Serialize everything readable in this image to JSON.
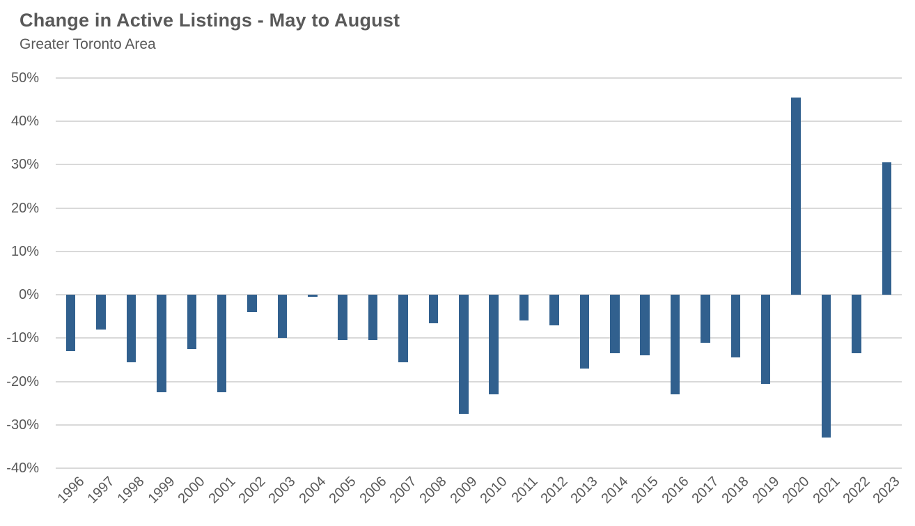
{
  "header": {
    "title": "Change in Active Listings - May to August",
    "subtitle": "Greater Toronto Area"
  },
  "colors": {
    "bar": "#31608E",
    "gridline": "#D9D9D9",
    "title_text": "#595959",
    "axis_text": "#595959",
    "background": "#FFFFFF"
  },
  "chart_data": {
    "type": "bar",
    "title": "Change in Active Listings - May to August",
    "subtitle": "Greater Toronto Area",
    "categories": [
      "1996",
      "1997",
      "1998",
      "1999",
      "2000",
      "2001",
      "2002",
      "2003",
      "2004",
      "2005",
      "2006",
      "2007",
      "2008",
      "2009",
      "2010",
      "2011",
      "2012",
      "2013",
      "2014",
      "2015",
      "2016",
      "2017",
      "2018",
      "2019",
      "2020",
      "2021",
      "2022",
      "2023"
    ],
    "values": [
      -13,
      -8,
      -15.5,
      -22.5,
      -12.5,
      -22.5,
      -4,
      -10,
      -0.5,
      -10.5,
      -10.5,
      -15.5,
      -6.5,
      -27.5,
      -23,
      -6,
      -7,
      -17,
      -13.5,
      -14,
      -23,
      -11,
      -14.5,
      -20.5,
      45.5,
      -33,
      -13.5,
      30.5
    ],
    "units": "%",
    "xlabel": "",
    "ylabel": "",
    "ylim": [
      -40,
      50
    ],
    "ytick_step": 10,
    "ytick_labels": [
      "50%",
      "40%",
      "30%",
      "20%",
      "10%",
      "0%",
      "-10%",
      "-20%",
      "-30%",
      "-40%"
    ],
    "grid": "horizontal-only",
    "legend": "none",
    "x_label_rotation_deg": 45,
    "bar_color": "#31608E"
  }
}
